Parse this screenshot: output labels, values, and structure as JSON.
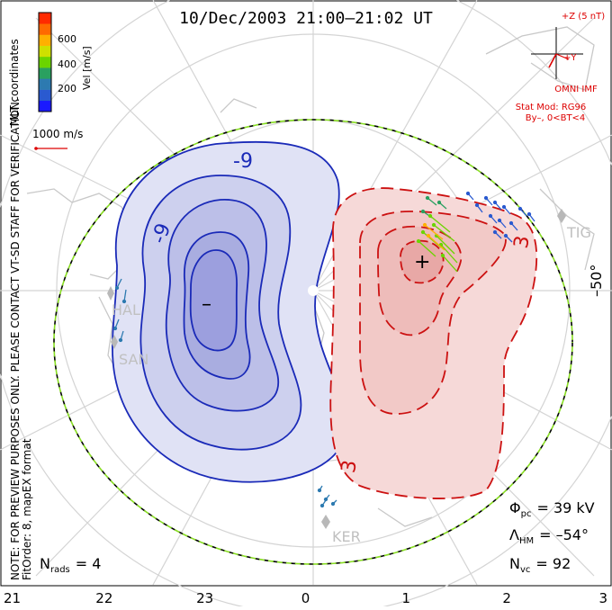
{
  "title": "10/Dec/2003 21:00–21:02 UT",
  "colorbar": {
    "label": "Vel [m/s]",
    "ticks": [
      "600",
      "400",
      "200"
    ],
    "colors": [
      "#ff2a00",
      "#ff6a00",
      "#ffb000",
      "#cfe000",
      "#6bd400",
      "#2aa060",
      "#2d7ab0",
      "#2a5ad0",
      "#1a1aff"
    ]
  },
  "coordinate_label": "MLT coordinates",
  "reference_vector_label": "1000 m/s",
  "preview_notice": "NOTE: FOR PREVIEW PURPOSES ONLY. PLEASE CONTACT VT-SD STAFF FOR VERIFICATION.",
  "fit_order_note": "FitOrder: 8, mapEX format",
  "imf": {
    "z_label": "+Z (5 nT)",
    "y_label": "+Y",
    "source": "OMNI IMF",
    "stat_mod": "Stat Mod: RG96",
    "condition": "By–, 0<BT<4"
  },
  "latitude_label": "–50°",
  "stations": [
    "HAL",
    "SAN",
    "TIG",
    "KER"
  ],
  "contours": {
    "negative_label": "-9",
    "positive_label": "3",
    "min_marker": "–",
    "max_marker": "+"
  },
  "stats": {
    "phi_pc": {
      "symbol": "Φ",
      "sub": "pc",
      "value": "= 39 kV"
    },
    "lambda_hm": {
      "symbol": "Λ",
      "sub": "HM",
      "value": "= –54°"
    },
    "n_vc": {
      "symbol": "N",
      "sub": "vc",
      "value": "= 92"
    },
    "n_rads": {
      "symbol": "N",
      "sub": "rads",
      "value": "= 4"
    }
  },
  "mlt_axis": [
    "21",
    "22",
    "23",
    "0",
    "1",
    "2",
    "3"
  ],
  "colors": {
    "negative_contour": "#1a2ab8",
    "positive_contour": "#cc1111",
    "negative_fill": "#c8cbee",
    "positive_fill": "#f6d2d0",
    "boundary_green": "#88dd22",
    "annotation_red": "#dd0000"
  }
}
